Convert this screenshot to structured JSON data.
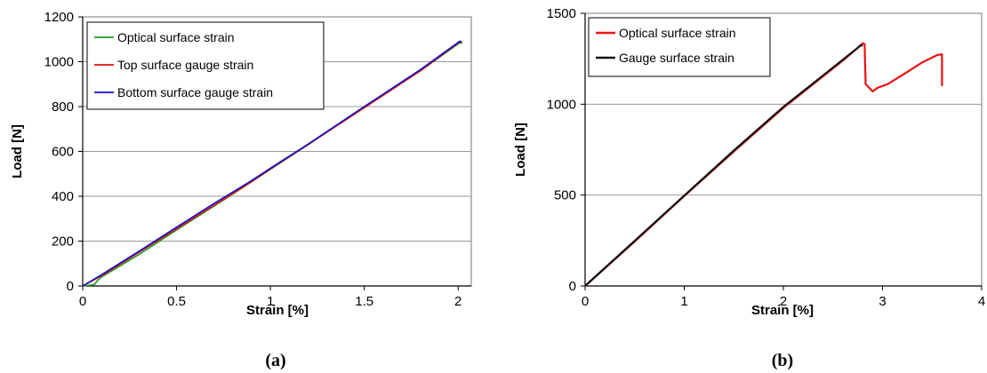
{
  "chart_data": [
    {
      "type": "line",
      "panel_label": "(a)",
      "xlabel": "Strain [%]",
      "ylabel": "Load [N]",
      "xlim": [
        0,
        2.07
      ],
      "ylim": [
        0,
        1200
      ],
      "xticks": [
        0,
        0.5,
        1,
        1.5,
        2
      ],
      "xtick_labels": [
        "0",
        "0.5",
        "1",
        "1.5",
        "2"
      ],
      "yticks": [
        0,
        200,
        400,
        600,
        800,
        1000,
        1200
      ],
      "ytick_labels": [
        "0",
        "200",
        "400",
        "600",
        "800",
        "1000",
        "1200"
      ],
      "grid": "horizontal",
      "legend_position": "top-left",
      "series": [
        {
          "name": "Optical surface strain",
          "color": "#1f9a1f",
          "x": [
            0,
            0.06,
            0.08,
            0.1,
            0.3,
            0.5,
            0.8,
            1.0,
            1.2,
            1.5,
            1.8,
            2.01,
            2.02
          ],
          "y": [
            0,
            5,
            25,
            40,
            140,
            250,
            410,
            520,
            630,
            800,
            960,
            1085,
            1080
          ]
        },
        {
          "name": "Top surface gauge strain",
          "color": "#e01010",
          "x": [
            0,
            0.1,
            0.3,
            0.5,
            0.7,
            0.9,
            1.0,
            1.2,
            1.5,
            1.8,
            2.01,
            2.02
          ],
          "y": [
            0,
            45,
            150,
            255,
            360,
            465,
            522,
            630,
            795,
            960,
            1090,
            1085
          ]
        },
        {
          "name": "Bottom surface gauge strain",
          "color": "#1010d0",
          "x": [
            0,
            0.1,
            0.3,
            0.5,
            0.7,
            0.9,
            1.0,
            1.2,
            1.5,
            1.8,
            2.01,
            2.02
          ],
          "y": [
            0,
            50,
            155,
            262,
            368,
            470,
            525,
            632,
            800,
            965,
            1092,
            1088
          ]
        }
      ]
    },
    {
      "type": "line",
      "panel_label": "(b)",
      "xlabel": "Strain [%]",
      "ylabel": "Load [N]",
      "xlim": [
        0,
        4
      ],
      "ylim": [
        0,
        1500
      ],
      "xticks": [
        0,
        1,
        2,
        3,
        4
      ],
      "xtick_labels": [
        "0",
        "1",
        "2",
        "3",
        "4"
      ],
      "yticks": [
        0,
        500,
        1000,
        1500
      ],
      "ytick_labels": [
        "0",
        "500",
        "1000",
        "1500"
      ],
      "grid": "horizontal",
      "legend_position": "top-left",
      "series": [
        {
          "name": "Optical surface strain",
          "color": "#ee1111",
          "x": [
            0,
            0.5,
            1.0,
            1.5,
            2.0,
            2.3,
            2.6,
            2.75,
            2.8,
            2.82,
            2.83,
            2.85,
            2.9,
            2.95,
            3.05,
            3.2,
            3.4,
            3.55,
            3.6,
            3.6
          ],
          "y": [
            0,
            245,
            495,
            740,
            980,
            1110,
            1240,
            1310,
            1335,
            1330,
            1110,
            1100,
            1070,
            1090,
            1110,
            1160,
            1230,
            1270,
            1275,
            1100
          ]
        },
        {
          "name": "Gauge surface strain",
          "color": "#111111",
          "x": [
            0,
            0.5,
            1.0,
            1.5,
            2.0,
            2.3,
            2.6,
            2.75,
            2.78,
            2.8
          ],
          "y": [
            0,
            248,
            497,
            745,
            985,
            1115,
            1245,
            1310,
            1325,
            1320
          ]
        }
      ]
    }
  ]
}
